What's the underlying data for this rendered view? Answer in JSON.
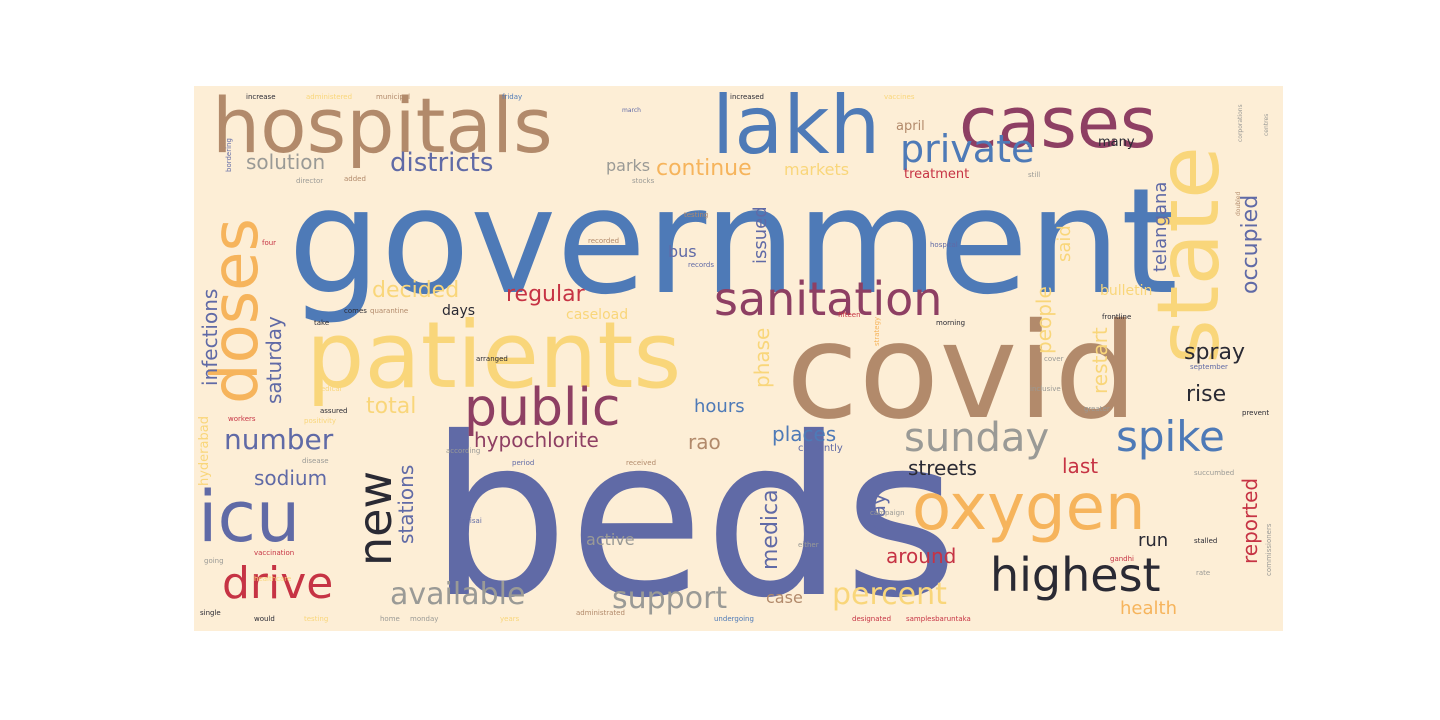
{
  "palette": {
    "background": "#fdeed6",
    "blue": "#4e7ab7",
    "slate": "#606aa6",
    "tan": "#b28a6b",
    "plum": "#8e3f63",
    "yellow": "#f9d67a",
    "orange": "#f6b45c",
    "red": "#c63344",
    "dark": "#2a2a34",
    "grey": "#9a9a96"
  },
  "words": [
    {
      "text": "government",
      "color": "blue"
    },
    {
      "text": "beds",
      "color": "slate"
    },
    {
      "text": "covid",
      "color": "tan"
    },
    {
      "text": "patients",
      "color": "yellow"
    },
    {
      "text": "hospitals",
      "color": "tan"
    },
    {
      "text": "lakh",
      "color": "blue"
    },
    {
      "text": "cases",
      "color": "plum"
    },
    {
      "text": "state",
      "color": "yellow"
    },
    {
      "text": "doses",
      "color": "orange"
    },
    {
      "text": "oxygen",
      "color": "orange"
    },
    {
      "text": "icu",
      "color": "slate"
    },
    {
      "text": "public",
      "color": "plum"
    },
    {
      "text": "sanitation",
      "color": "plum"
    },
    {
      "text": "highest",
      "color": "dark"
    },
    {
      "text": "spike",
      "color": "blue"
    },
    {
      "text": "sunday",
      "color": "grey"
    },
    {
      "text": "drive",
      "color": "red"
    },
    {
      "text": "private",
      "color": "blue"
    },
    {
      "text": "new",
      "color": "dark"
    },
    {
      "text": "available",
      "color": "grey"
    },
    {
      "text": "support",
      "color": "grey"
    },
    {
      "text": "percent",
      "color": "yellow"
    },
    {
      "text": "districts",
      "color": "slate"
    },
    {
      "text": "number",
      "color": "slate"
    },
    {
      "text": "regular",
      "color": "red"
    },
    {
      "text": "hypochlorite",
      "color": "plum"
    },
    {
      "text": "total",
      "color": "yellow"
    },
    {
      "text": "decided",
      "color": "yellow"
    },
    {
      "text": "continue",
      "color": "orange"
    },
    {
      "text": "solution",
      "color": "grey"
    },
    {
      "text": "sodium",
      "color": "slate"
    },
    {
      "text": "streets",
      "color": "dark"
    },
    {
      "text": "places",
      "color": "blue"
    },
    {
      "text": "hours",
      "color": "blue"
    },
    {
      "text": "rao",
      "color": "tan"
    },
    {
      "text": "spray",
      "color": "dark"
    },
    {
      "text": "rise",
      "color": "dark"
    },
    {
      "text": "last",
      "color": "red"
    },
    {
      "text": "around",
      "color": "red"
    },
    {
      "text": "run",
      "color": "dark"
    },
    {
      "text": "health",
      "color": "orange"
    },
    {
      "text": "case",
      "color": "tan"
    },
    {
      "text": "active",
      "color": "grey"
    },
    {
      "text": "parks",
      "color": "grey"
    },
    {
      "text": "markets",
      "color": "yellow"
    },
    {
      "text": "bus",
      "color": "slate"
    },
    {
      "text": "days",
      "color": "dark"
    },
    {
      "text": "caseload",
      "color": "yellow"
    },
    {
      "text": "bulletin",
      "color": "yellow"
    },
    {
      "text": "april",
      "color": "tan"
    },
    {
      "text": "treatment",
      "color": "red"
    },
    {
      "text": "many",
      "color": "dark"
    },
    {
      "text": "infections",
      "color": "slate"
    },
    {
      "text": "saturday",
      "color": "slate"
    },
    {
      "text": "stations",
      "color": "slate"
    },
    {
      "text": "medical",
      "color": "slate"
    },
    {
      "text": "day",
      "color": "slate"
    },
    {
      "text": "phase",
      "color": "yellow"
    },
    {
      "text": "issued",
      "color": "slate"
    },
    {
      "text": "said",
      "color": "yellow"
    },
    {
      "text": "people",
      "color": "yellow"
    },
    {
      "text": "restart",
      "color": "yellow"
    },
    {
      "text": "occupied",
      "color": "slate"
    },
    {
      "text": "telangana",
      "color": "slate"
    },
    {
      "text": "reported",
      "color": "red"
    },
    {
      "text": "hyderabad",
      "color": "yellow"
    },
    {
      "text": "increase",
      "color": "dark"
    },
    {
      "text": "administered",
      "color": "yellow"
    },
    {
      "text": "municipal",
      "color": "tan"
    },
    {
      "text": "friday",
      "color": "blue"
    },
    {
      "text": "increased",
      "color": "dark"
    },
    {
      "text": "vaccines",
      "color": "yellow"
    },
    {
      "text": "march",
      "color": "slate"
    },
    {
      "text": "director",
      "color": "grey"
    },
    {
      "text": "testing",
      "color": "tan"
    },
    {
      "text": "hospital",
      "color": "slate"
    },
    {
      "text": "recorded",
      "color": "tan"
    },
    {
      "text": "records",
      "color": "slate"
    },
    {
      "text": "morning",
      "color": "dark"
    },
    {
      "text": "frontline",
      "color": "dark"
    },
    {
      "text": "positivity",
      "color": "yellow"
    },
    {
      "text": "assured",
      "color": "dark"
    },
    {
      "text": "arranged",
      "color": "dark"
    },
    {
      "text": "workers",
      "color": "red"
    },
    {
      "text": "medical",
      "color": "yellow"
    },
    {
      "text": "quarantine",
      "color": "tan"
    },
    {
      "text": "comes",
      "color": "dark"
    },
    {
      "text": "take",
      "color": "dark"
    },
    {
      "text": "according",
      "color": "grey"
    },
    {
      "text": "disease",
      "color": "grey"
    },
    {
      "text": "period",
      "color": "slate"
    },
    {
      "text": "received",
      "color": "tan"
    },
    {
      "text": "currently",
      "color": "slate"
    },
    {
      "text": "saisai",
      "color": "slate"
    },
    {
      "text": "vaccination",
      "color": "red"
    },
    {
      "text": "healthcare",
      "color": "yellow"
    },
    {
      "text": "going",
      "color": "grey"
    },
    {
      "text": "single",
      "color": "dark"
    },
    {
      "text": "would",
      "color": "dark"
    },
    {
      "text": "testing",
      "color": "yellow"
    },
    {
      "text": "home",
      "color": "grey"
    },
    {
      "text": "monday",
      "color": "grey"
    },
    {
      "text": "years",
      "color": "yellow"
    },
    {
      "text": "administrated",
      "color": "tan"
    },
    {
      "text": "undergoing",
      "color": "blue"
    },
    {
      "text": "designated",
      "color": "red"
    },
    {
      "text": "samplesbaruntaka",
      "color": "red"
    },
    {
      "text": "either",
      "color": "grey"
    },
    {
      "text": "campaign",
      "color": "grey"
    },
    {
      "text": "gandhi",
      "color": "red"
    },
    {
      "text": "stalled",
      "color": "dark"
    },
    {
      "text": "commissioners",
      "color": "grey"
    },
    {
      "text": "greater",
      "color": "grey"
    },
    {
      "text": "succumbed",
      "color": "grey"
    },
    {
      "text": "prevent",
      "color": "dark"
    },
    {
      "text": "inclusive",
      "color": "grey"
    },
    {
      "text": "cover",
      "color": "grey"
    },
    {
      "text": "september",
      "color": "slate"
    },
    {
      "text": "fifteen",
      "color": "red"
    },
    {
      "text": "strategy",
      "color": "orange"
    },
    {
      "text": "corporations",
      "color": "grey"
    },
    {
      "text": "centres",
      "color": "grey"
    },
    {
      "text": "doubled",
      "color": "tan"
    },
    {
      "text": "stocks",
      "color": "grey"
    },
    {
      "text": "still",
      "color": "grey"
    },
    {
      "text": "rate",
      "color": "grey"
    },
    {
      "text": "bordering",
      "color": "slate"
    },
    {
      "text": "four",
      "color": "red"
    },
    {
      "text": "added",
      "color": "tan"
    }
  ]
}
